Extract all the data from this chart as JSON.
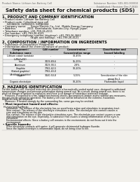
{
  "bg_color": "#f2f0eb",
  "header_left": "Product Name: Lithium Ion Battery Cell",
  "header_right": "Substance Number: SDS-001-000010\nEstablished / Revision: Dec.7.2010",
  "title": "Safety data sheet for chemical products (SDS)",
  "s1_title": "1. PRODUCT AND COMPANY IDENTIFICATION",
  "s1_lines": [
    "• Product name: Lithium Ion Battery Cell",
    "• Product code: Cylindrical-type cell",
    "     04186500, 04186500, 04186904",
    "• Company name:      Sanyo Electric Co., Ltd.  Mobile Energy Company",
    "• Address:              2001  Kamitakaido, Sumoto-City, Hyogo, Japan",
    "• Telephone number: +81-799-26-4111",
    "• Fax number: +81-799-26-4121",
    "• Emergency telephone number (daytime): +81-799-26-3662",
    "                                   (Night and holiday): +81-799-26-4121"
  ],
  "s2_title": "2. COMPOSITION / INFORMATION ON INGREDIENTS",
  "s2_a": "• Substance or preparation: Preparation",
  "s2_b": "• Information about the chemical nature of product:",
  "th": [
    "Component /\nSubstance name",
    "CAS number",
    "Concentration /\nConcentration range",
    "Classification and\nhazard labeling"
  ],
  "tr": [
    [
      "Lithium cobalt tantalate\n(LiMnCoO4)",
      "-",
      "30-45%",
      "-"
    ],
    [
      "Iron",
      "7439-89-6",
      "15-25%",
      "-"
    ],
    [
      "Aluminum",
      "7429-90-5",
      "2-8%",
      "-"
    ],
    [
      "Graphite\n(flaked graphite)\n(Artificial graphite)",
      "7782-42-5\n7782-43-0",
      "10-20%",
      "-"
    ],
    [
      "Copper",
      "7440-50-8",
      "5-15%",
      "Sensitization of the skin\ngroup No.2"
    ],
    [
      "Organic electrolyte",
      "-",
      "10-20%",
      "Flammable liquid"
    ]
  ],
  "s3_title": "3. HAZARDS IDENTIFICATION",
  "s3_body": [
    "For this battery cell, chemical materials are stored in a hermetically sealed metal case, designed to withstand",
    "temperature changes and pressure-polarization during normal use. As a result, during normal use, there is no",
    "physical danger of ignition or explosion and there is no danger of hazardous materials leakage.",
    "    However, if exposed to a fire, added mechanical shocks, decomposed, broken atoms without any measures,",
    "the gas inside cannot be operated. The battery cell case will be breached at the extreme, hazardous",
    "materials may be released.",
    "    Moreover, if heated strongly by the surrounding fire, some gas may be emitted."
  ],
  "s3_sub1": "• Most important hazard and effects:",
  "s3_sub1_body": [
    "Human health effects:",
    "    Inhalation: The release of the electrolyte has an anesthesia action and stimulates in respiratory tract.",
    "    Skin contact: The release of the electrolyte stimulates a skin. The electrolyte skin contact causes a",
    "    sore and stimulation on the skin.",
    "    Eye contact: The release of the electrolyte stimulates eyes. The electrolyte eye contact causes a sore",
    "    and stimulation on the eye. Especially, a substance that causes a strong inflammation of the eyes is",
    "    contained.",
    "    Environmental effects: Since a battery cell remains in the environment, do not throw out it into the",
    "    environment."
  ],
  "s3_sub2": "• Specific hazards:",
  "s3_sub2_body": [
    "    If the electrolyte contacts with water, it will generate detrimental hydrogen fluoride.",
    "    Since the liquid electrolyte is inflammable liquid, do not bring close to fire."
  ]
}
